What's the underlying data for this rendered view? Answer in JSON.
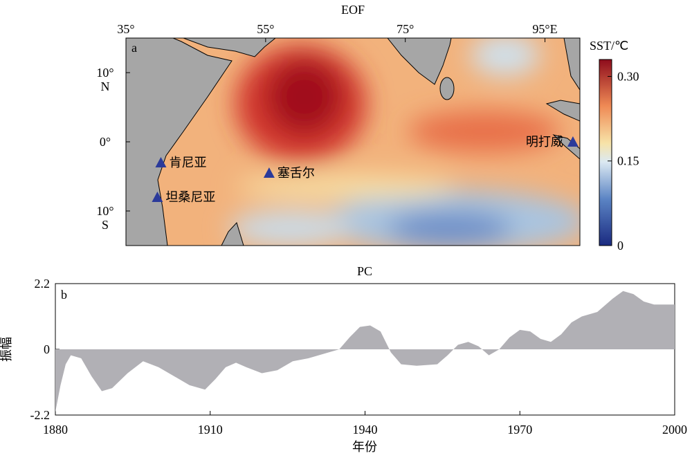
{
  "chart_data": [
    {
      "type": "map",
      "title": "EOF",
      "panel_label": "a",
      "xlim": [
        35,
        100
      ],
      "ylim": [
        -15,
        15
      ],
      "xticks": [
        {
          "value": 35,
          "label": "35°"
        },
        {
          "value": 55,
          "label": "55°"
        },
        {
          "value": 75,
          "label": "75°"
        },
        {
          "value": 95,
          "label": "95°E"
        }
      ],
      "yticks": [
        {
          "value": 10,
          "label": "10°\nN"
        },
        {
          "value": 0,
          "label": "0°"
        },
        {
          "value": -10,
          "label": "10°\nS"
        }
      ],
      "colorbar": {
        "label": "SST/℃",
        "clim": [
          0,
          0.33
        ],
        "ticks": [
          0,
          0.15,
          {
            "value": 0.3,
            "label": "0.30"
          }
        ]
      },
      "stations": [
        {
          "name": "肯尼亚",
          "lon": 40,
          "lat": -3,
          "color": "#2b3a9a"
        },
        {
          "name": "坦桑尼亚",
          "lon": 39.5,
          "lat": -8,
          "color": "#2b3a9a"
        },
        {
          "name": "塞舌尔",
          "lon": 55.5,
          "lat": -4.5,
          "color": "#2b3a9a"
        },
        {
          "name": "明打威",
          "lon": 99,
          "lat": 0,
          "color": "#2b3a9a"
        }
      ]
    },
    {
      "type": "area",
      "title": "PC",
      "panel_label": "b",
      "x_label": "年份",
      "y_label": "振幅",
      "color": "#b1b0b5",
      "xlim": [
        1880,
        2000
      ],
      "ylim": [
        -2.2,
        2.2
      ],
      "xticks": [
        1880,
        1910,
        1940,
        1970,
        2000
      ],
      "yticks": [
        2.2,
        0,
        -2.2
      ],
      "x": [
        1880,
        1881,
        1882,
        1883,
        1885,
        1887,
        1889,
        1891,
        1894,
        1897,
        1900,
        1903,
        1906,
        1909,
        1911,
        1913,
        1915,
        1917,
        1920,
        1923,
        1926,
        1929,
        1932,
        1935,
        1937,
        1939,
        1941,
        1943,
        1945,
        1947,
        1950,
        1954,
        1956,
        1958,
        1960,
        1962,
        1964,
        1966,
        1968,
        1970,
        1972,
        1974,
        1976,
        1978,
        1980,
        1982,
        1985,
        1988,
        1990,
        1992,
        1994,
        1996,
        2000
      ],
      "values": [
        -2.1,
        -1.2,
        -0.5,
        -0.2,
        -0.3,
        -0.9,
        -1.4,
        -1.3,
        -0.8,
        -0.4,
        -0.6,
        -0.9,
        -1.2,
        -1.35,
        -1.0,
        -0.6,
        -0.45,
        -0.6,
        -0.8,
        -0.7,
        -0.4,
        -0.3,
        -0.15,
        0,
        0.4,
        0.75,
        0.8,
        0.6,
        -0.1,
        -0.5,
        -0.55,
        -0.5,
        -0.2,
        0.15,
        0.25,
        0.1,
        -0.2,
        0,
        0.4,
        0.65,
        0.6,
        0.35,
        0.25,
        0.5,
        0.9,
        1.1,
        1.25,
        1.7,
        1.95,
        1.85,
        1.6,
        1.5,
        1.5
      ]
    }
  ]
}
